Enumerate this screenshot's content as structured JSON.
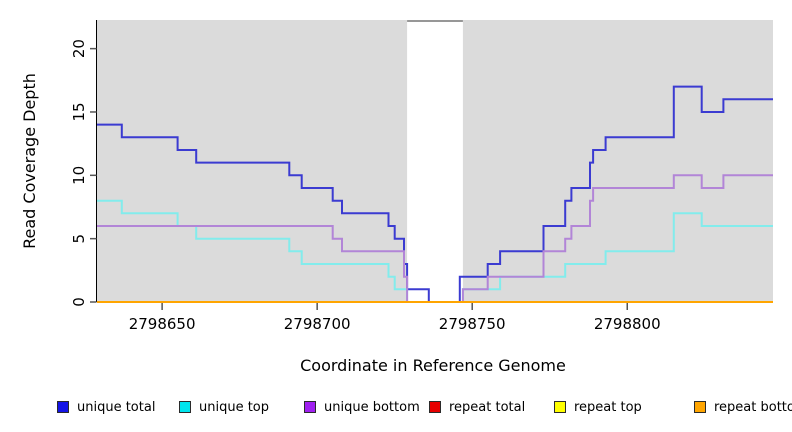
{
  "figure": {
    "background": "#ffffff",
    "plot_background": "#dbdbdb"
  },
  "chart_data": {
    "type": "line",
    "subtype": "step-post",
    "title": "",
    "xlabel": "Coordinate in Reference Genome",
    "ylabel": "Read Coverage Depth",
    "xlim": [
      2798629,
      2798847
    ],
    "ylim": [
      0,
      22.26
    ],
    "grid": false,
    "x_ticks": [
      {
        "value": 2798650,
        "label": "2798650"
      },
      {
        "value": 2798700,
        "label": "2798700"
      },
      {
        "value": 2798750,
        "label": "2798750"
      },
      {
        "value": 2798800,
        "label": "2798800"
      }
    ],
    "y_ticks": [
      {
        "value": 0,
        "label": "0"
      },
      {
        "value": 5,
        "label": "5"
      },
      {
        "value": 10,
        "label": "10"
      },
      {
        "value": 15,
        "label": "15"
      },
      {
        "value": 20,
        "label": "20"
      }
    ],
    "gap_region": {
      "from": 2798729,
      "to": 2798747,
      "fill": "#ffffff",
      "top_border": "#979797"
    },
    "legend_position": "bottom",
    "series": [
      {
        "name": "unique total",
        "swatch_color": "#1414e6",
        "line_color": "#3b3bd1",
        "points": [
          [
            2798629,
            14
          ],
          [
            2798637,
            13
          ],
          [
            2798655,
            12
          ],
          [
            2798661,
            11
          ],
          [
            2798691,
            10
          ],
          [
            2798695,
            9
          ],
          [
            2798705,
            8
          ],
          [
            2798708,
            7
          ],
          [
            2798723,
            6
          ],
          [
            2798725,
            5
          ],
          [
            2798728,
            3
          ],
          [
            2798729,
            1
          ],
          [
            2798736,
            0
          ],
          [
            2798746,
            2
          ],
          [
            2798755,
            3
          ],
          [
            2798759,
            4
          ],
          [
            2798773,
            6
          ],
          [
            2798780,
            8
          ],
          [
            2798782,
            9
          ],
          [
            2798788,
            11
          ],
          [
            2798789,
            12
          ],
          [
            2798793,
            13
          ],
          [
            2798815,
            17
          ],
          [
            2798824,
            15
          ],
          [
            2798831,
            16
          ]
        ]
      },
      {
        "name": "unique top",
        "swatch_color": "#00e5ee",
        "line_color": "#82ecec",
        "points": [
          [
            2798629,
            8
          ],
          [
            2798637,
            7
          ],
          [
            2798655,
            6
          ],
          [
            2798661,
            5
          ],
          [
            2798691,
            4
          ],
          [
            2798695,
            3
          ],
          [
            2798723,
            2
          ],
          [
            2798725,
            1
          ],
          [
            2798729,
            0
          ],
          [
            2798747,
            1
          ],
          [
            2798759,
            2
          ],
          [
            2798780,
            3
          ],
          [
            2798793,
            4
          ],
          [
            2798815,
            7
          ],
          [
            2798824,
            6
          ]
        ]
      },
      {
        "name": "unique bottom",
        "swatch_color": "#a020f0",
        "line_color": "#b285d7",
        "points": [
          [
            2798629,
            6
          ],
          [
            2798705,
            5
          ],
          [
            2798708,
            4
          ],
          [
            2798728,
            2
          ],
          [
            2798729,
            0
          ],
          [
            2798747,
            1
          ],
          [
            2798755,
            2
          ],
          [
            2798773,
            4
          ],
          [
            2798780,
            5
          ],
          [
            2798782,
            6
          ],
          [
            2798788,
            8
          ],
          [
            2798789,
            9
          ],
          [
            2798815,
            10
          ],
          [
            2798824,
            9
          ],
          [
            2798831,
            10
          ]
        ]
      },
      {
        "name": "repeat total",
        "swatch_color": "#e60000",
        "line_color": "#e60000",
        "points": [
          [
            2798629,
            0
          ]
        ]
      },
      {
        "name": "repeat top",
        "swatch_color": "#ffff00",
        "line_color": "#ffff00",
        "points": [
          [
            2798629,
            0
          ]
        ]
      },
      {
        "name": "repeat bottom",
        "swatch_color": "#ffa500",
        "line_color": "#ffa500",
        "points": [
          [
            2798629,
            0
          ]
        ]
      }
    ]
  }
}
